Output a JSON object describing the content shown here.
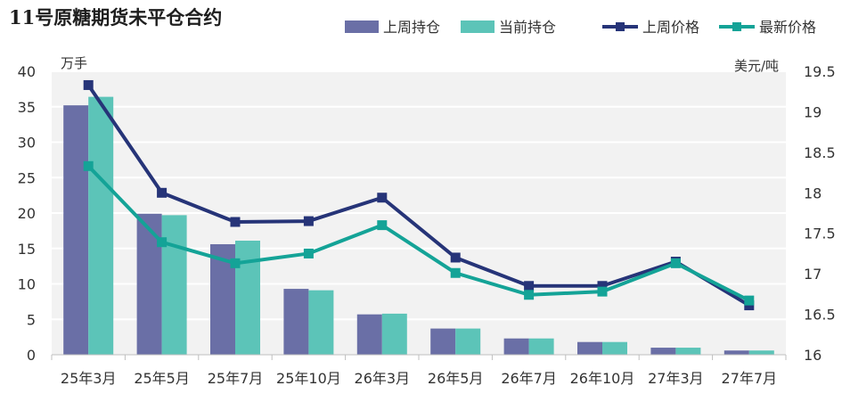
{
  "chart_data": {
    "type": "bar",
    "title": "11号原糖期货未平仓合约",
    "categories": [
      "25年3月",
      "25年5月",
      "25年7月",
      "25年10月",
      "26年3月",
      "26年5月",
      "26年7月",
      "26年10月",
      "27年3月",
      "27年7月"
    ],
    "y_left": {
      "unit": "万手",
      "range": [
        0,
        40
      ],
      "ticks": [
        0,
        5,
        10,
        15,
        20,
        25,
        30,
        35,
        40
      ]
    },
    "y_right": {
      "unit": "美元/吨",
      "range": [
        16,
        19.5
      ],
      "ticks": [
        16,
        16.5,
        17,
        17.5,
        18,
        18.5,
        19,
        19.5
      ]
    },
    "series": [
      {
        "name": "上周持仓",
        "type": "bar",
        "axis": "left",
        "color": "#6a6fa6",
        "values": [
          35.2,
          19.9,
          15.6,
          9.3,
          5.7,
          3.7,
          2.3,
          1.8,
          1.0,
          0.6
        ]
      },
      {
        "name": "当前持仓",
        "type": "bar",
        "axis": "left",
        "color": "#5cc4b8",
        "values": [
          36.4,
          19.7,
          16.1,
          9.1,
          5.8,
          3.7,
          2.3,
          1.8,
          1.0,
          0.6
        ]
      },
      {
        "name": "上周价格",
        "type": "line",
        "axis": "right",
        "color": "#263478",
        "values": [
          19.33,
          18.0,
          17.64,
          17.65,
          17.94,
          17.2,
          16.85,
          16.85,
          17.15,
          16.61
        ]
      },
      {
        "name": "最新价格",
        "type": "line",
        "axis": "right",
        "color": "#14a397",
        "values": [
          18.33,
          17.39,
          17.13,
          17.25,
          17.6,
          17.01,
          16.74,
          16.78,
          17.13,
          16.67
        ]
      }
    ],
    "grid": true,
    "legend_position": "top-right"
  }
}
